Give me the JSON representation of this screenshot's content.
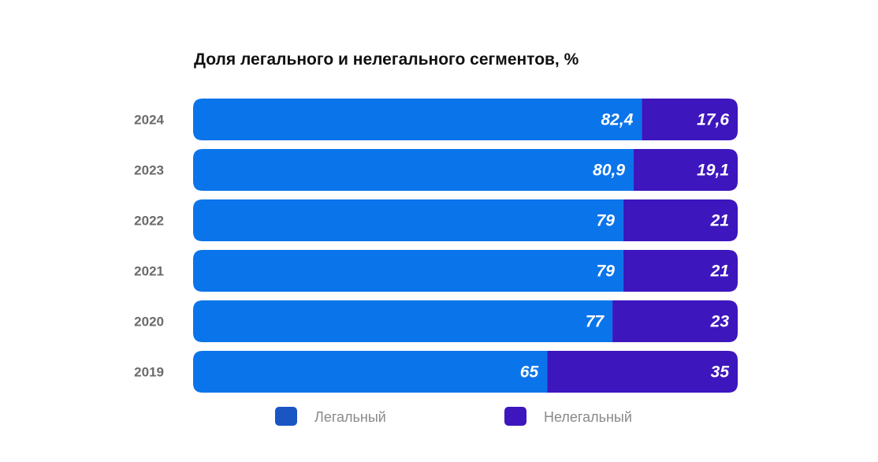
{
  "chart_data": {
    "type": "bar",
    "orientation": "horizontal",
    "stacked": true,
    "title": "Доля легального и нелегального сегментов, %",
    "categories": [
      "2024",
      "2023",
      "2022",
      "2021",
      "2020",
      "2019"
    ],
    "series": [
      {
        "name": "Легальный",
        "values": [
          82.4,
          80.9,
          79,
          79,
          77,
          65
        ],
        "labels": [
          "82,4",
          "80,9",
          "79",
          "79",
          "77",
          "65"
        ],
        "color": "#0a74ea"
      },
      {
        "name": "Нелегальный",
        "values": [
          17.6,
          19.1,
          21,
          21,
          23,
          35
        ],
        "labels": [
          "17,6",
          "19,1",
          "21",
          "21",
          "23",
          "35"
        ],
        "color": "#3d16bd"
      }
    ],
    "xlim": [
      0,
      100
    ],
    "grid": false,
    "legend_position": "bottom"
  },
  "colors": {
    "legend_legal": "#1a55c4",
    "legend_illegal": "#3d16bd",
    "title": "#111111",
    "year_label": "#6b6b6b",
    "legend_text": "#8a8a8a"
  }
}
